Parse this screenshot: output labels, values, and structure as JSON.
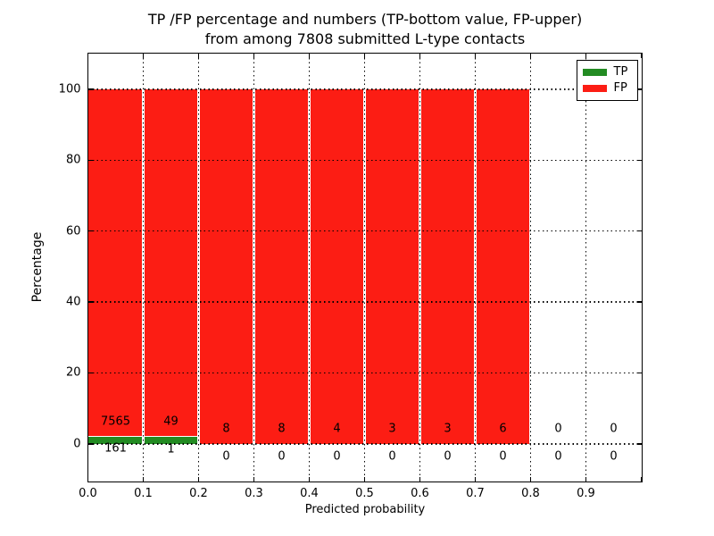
{
  "figure": {
    "title_line1": "TP /FP percentage and numbers (TP-bottom value, FP-upper)",
    "title_line2": "from among 7808 submitted L-type contacts"
  },
  "chart_data": {
    "type": "bar",
    "stacked": true,
    "title": "TP /FP percentage and numbers (TP-bottom value, FP-upper) from among 7808 submitted L-type contacts",
    "total_submitted": 7808,
    "xlabel": "Predicted probability",
    "ylabel": "Percentage",
    "xlim": [
      0.0,
      1.0
    ],
    "ylim": [
      -10.5,
      110.2
    ],
    "grid": true,
    "grid_style": "dotted",
    "bin_edges": [
      0.0,
      0.1,
      0.2,
      0.3,
      0.4,
      0.5,
      0.6,
      0.7,
      0.8,
      0.9,
      1.0
    ],
    "xtick_values": [
      0.0,
      0.1,
      0.2,
      0.3,
      0.4,
      0.5,
      0.6,
      0.7,
      0.8,
      0.9
    ],
    "xtick_labels": [
      "0.0",
      "0.1",
      "0.2",
      "0.3",
      "0.4",
      "0.5",
      "0.6",
      "0.7",
      "0.8",
      "0.9"
    ],
    "ytick_values": [
      0,
      20,
      40,
      60,
      80,
      100
    ],
    "ytick_labels": [
      "0",
      "20",
      "40",
      "60",
      "80",
      "100"
    ],
    "series": [
      {
        "name": "TP",
        "color": "#228b22",
        "counts": [
          161,
          1,
          0,
          0,
          0,
          0,
          0,
          0,
          0,
          0
        ],
        "pct": [
          2.08,
          2.0,
          0,
          0,
          0,
          0,
          0,
          0,
          0,
          0
        ]
      },
      {
        "name": "FP",
        "color": "#fc1d14",
        "counts": [
          7565,
          49,
          8,
          8,
          4,
          3,
          3,
          6,
          0,
          0
        ],
        "pct": [
          97.92,
          98.0,
          100,
          100,
          100,
          100,
          100,
          100,
          0,
          0
        ]
      }
    ],
    "legend": {
      "position": "upper right",
      "labels": [
        "TP",
        "FP"
      ]
    }
  }
}
